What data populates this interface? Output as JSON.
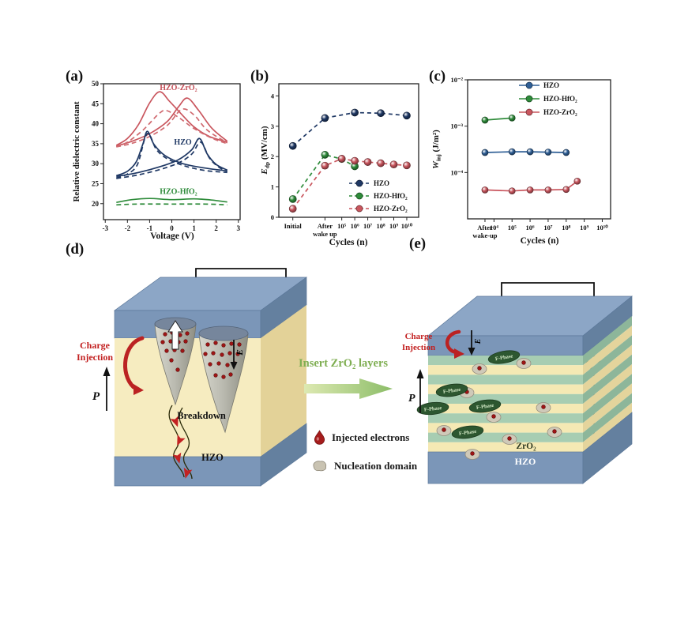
{
  "panels": {
    "a": "(a)",
    "b": "(b)",
    "c": "(c)",
    "d": "(d)",
    "e": "(e)"
  },
  "middle": {
    "insert_arrow_label": "Insert ZrO₂ layers",
    "legend": [
      {
        "icon": "electron-droplet",
        "label": "Injected electrons"
      },
      {
        "icon": "nucleation-blob",
        "label": "Nucleation domain"
      }
    ]
  },
  "diagram_d": {
    "charge_injection": [
      "Charge",
      "Injection"
    ],
    "polarization": "P",
    "field": "E",
    "breakdown": "Breakdown",
    "material": "HZO"
  },
  "diagram_e": {
    "charge_injection": [
      "Charge",
      "Injection"
    ],
    "polarization": "P",
    "field": "E",
    "phase_label": "F-Phase",
    "zro2": "ZrO₂",
    "hzo": "HZO"
  },
  "chart_data": [
    {
      "id": "a",
      "type": "line",
      "xlabel": "Voltage (V)",
      "ylabel": "Relative dielectric constant",
      "xlim": [
        -3.08,
        3.08
      ],
      "ylim": [
        16,
        50
      ],
      "xticks": [
        -3,
        -2,
        -1,
        0,
        1,
        2,
        3
      ],
      "yticks": [
        20,
        25,
        30,
        35,
        40,
        45,
        50
      ],
      "grid": false,
      "annotations": [
        {
          "text": "HZO-ZrO₂",
          "x": 0.3,
          "y": 48.4,
          "color": "#c44f58"
        },
        {
          "text": "HZO",
          "x": 0.5,
          "y": 34.8,
          "color": "#1f3864"
        },
        {
          "text": "HZO-HfO₂",
          "x": 0.3,
          "y": 22.4,
          "color": "#2e8b3a"
        }
      ],
      "series": [
        {
          "name": "HZO-ZrO2 sweep- solid",
          "color": "#c9565e",
          "dash": "none",
          "points": [
            [
              -2.5,
              34.6
            ],
            [
              -2.0,
              36.3
            ],
            [
              -1.5,
              39.8
            ],
            [
              -1.0,
              45.2
            ],
            [
              -0.55,
              48.0
            ],
            [
              -0.1,
              45.6
            ],
            [
              0.4,
              42.6
            ],
            [
              1.0,
              39.2
            ],
            [
              1.7,
              36.8
            ],
            [
              2.5,
              35.4
            ]
          ]
        },
        {
          "name": "HZO-ZrO2 sweep+ solid",
          "color": "#c9565e",
          "dash": "none",
          "points": [
            [
              -2.5,
              34.4
            ],
            [
              -1.8,
              35.6
            ],
            [
              -1.0,
              37.5
            ],
            [
              -0.2,
              40.6
            ],
            [
              0.3,
              44.2
            ],
            [
              0.7,
              46.4
            ],
            [
              1.2,
              43.4
            ],
            [
              1.8,
              38.9
            ],
            [
              2.5,
              35.6
            ]
          ]
        },
        {
          "name": "HZO-ZrO2 sweep- dashed",
          "color": "#d06a70",
          "dash": "6,4",
          "points": [
            [
              -2.5,
              34.2
            ],
            [
              -2.0,
              35.4
            ],
            [
              -1.3,
              38.4
            ],
            [
              -0.6,
              42.4
            ],
            [
              -0.25,
              43.3
            ],
            [
              0.3,
              41.6
            ],
            [
              1.0,
              38.8
            ],
            [
              1.8,
              36.4
            ],
            [
              2.5,
              35.0
            ]
          ]
        },
        {
          "name": "HZO-ZrO2 sweep+ dashed",
          "color": "#d06a70",
          "dash": "6,4",
          "points": [
            [
              -2.5,
              34.2
            ],
            [
              -1.8,
              35.1
            ],
            [
              -1.0,
              36.8
            ],
            [
              -0.2,
              39.6
            ],
            [
              0.45,
              43.6
            ],
            [
              1.0,
              42.2
            ],
            [
              1.6,
              38.4
            ],
            [
              2.5,
              35.2
            ]
          ]
        },
        {
          "name": "HZO sweep- solid",
          "color": "#1f3864",
          "dash": "none",
          "points": [
            [
              -2.5,
              27.0
            ],
            [
              -2.0,
              28.1
            ],
            [
              -1.6,
              30.5
            ],
            [
              -1.3,
              35.0
            ],
            [
              -1.1,
              38.1
            ],
            [
              -0.8,
              34.8
            ],
            [
              -0.3,
              32.0
            ],
            [
              0.5,
              30.0
            ],
            [
              1.5,
              28.9
            ],
            [
              2.5,
              28.2
            ]
          ]
        },
        {
          "name": "HZO sweep+ solid",
          "color": "#1f3864",
          "dash": "none",
          "points": [
            [
              -2.5,
              26.8
            ],
            [
              -1.5,
              27.8
            ],
            [
              -0.5,
              29.3
            ],
            [
              0.3,
              31.0
            ],
            [
              0.9,
              33.5
            ],
            [
              1.25,
              36.3
            ],
            [
              1.6,
              32.4
            ],
            [
              2.0,
              29.8
            ],
            [
              2.5,
              28.4
            ]
          ]
        },
        {
          "name": "HZO sweep- dashed",
          "color": "#1f3864",
          "dash": "6,4",
          "points": [
            [
              -2.5,
              26.4
            ],
            [
              -2.0,
              27.4
            ],
            [
              -1.55,
              29.8
            ],
            [
              -1.2,
              36.6
            ],
            [
              -1.0,
              37.2
            ],
            [
              -0.7,
              33.6
            ],
            [
              -0.2,
              31.2
            ],
            [
              0.6,
              29.4
            ],
            [
              1.5,
              28.3
            ],
            [
              2.5,
              27.8
            ]
          ]
        },
        {
          "name": "HZO sweep+ dashed",
          "color": "#1f3864",
          "dash": "6,4",
          "points": [
            [
              -2.5,
              26.3
            ],
            [
              -1.5,
              27.2
            ],
            [
              -0.5,
              28.6
            ],
            [
              0.3,
              30.2
            ],
            [
              0.9,
              32.4
            ],
            [
              1.3,
              35.4
            ],
            [
              1.7,
              31.4
            ],
            [
              2.1,
              29.2
            ],
            [
              2.5,
              28.0
            ]
          ]
        },
        {
          "name": "HZO-HfO2 solid",
          "color": "#2e8b3a",
          "dash": "none",
          "points": [
            [
              -2.5,
              20.3
            ],
            [
              -1.8,
              21.0
            ],
            [
              -1.0,
              21.3
            ],
            [
              0.0,
              21.0
            ],
            [
              1.0,
              21.2
            ],
            [
              1.8,
              20.9
            ],
            [
              2.5,
              20.4
            ]
          ]
        },
        {
          "name": "HZO-HfO2 dashed",
          "color": "#2e8b3a",
          "dash": "6,4",
          "points": [
            [
              -2.5,
              19.7
            ],
            [
              -1.5,
              19.9
            ],
            [
              0.0,
              19.9
            ],
            [
              1.5,
              19.9
            ],
            [
              2.5,
              19.7
            ]
          ]
        }
      ]
    },
    {
      "id": "b",
      "type": "scatter-line",
      "xlabel": "Cycles (n)",
      "ylabel": {
        "sym": "E",
        "sub": "dp",
        "unit": " (MV/cm)"
      },
      "xlim": [
        0,
        10
      ],
      "ylim": [
        0,
        4.4
      ],
      "yticks": [
        0,
        1,
        2,
        3,
        4
      ],
      "xticks": [
        {
          "u": 1.0,
          "label": "Initial"
        },
        {
          "u": 3.3,
          "lines": [
            "After",
            "wake up"
          ]
        },
        {
          "u": 4.5,
          "label": "10⁵"
        },
        {
          "u": 5.43,
          "label": "10⁶"
        },
        {
          "u": 6.36,
          "label": "10⁷"
        },
        {
          "u": 7.29,
          "label": "10⁸"
        },
        {
          "u": 8.22,
          "label": "10⁹"
        },
        {
          "u": 9.15,
          "label": "10¹⁰"
        }
      ],
      "show_legend": true,
      "series": [
        {
          "name": "HZO",
          "color": "#1f3864",
          "dash": "5,4",
          "points": [
            [
              1.0,
              2.35
            ],
            [
              3.3,
              3.27
            ],
            [
              5.43,
              3.45
            ],
            [
              7.29,
              3.43
            ],
            [
              9.15,
              3.35
            ]
          ]
        },
        {
          "name": "HZO-HfO₂",
          "color": "#2e8b3a",
          "dash": "5,4",
          "points": [
            [
              1.0,
              0.6
            ],
            [
              3.3,
              2.06
            ],
            [
              4.5,
              1.92
            ],
            [
              5.43,
              1.68
            ]
          ]
        },
        {
          "name": "HZO-ZrO₂",
          "color": "#c9565e",
          "dash": "5,4",
          "points": [
            [
              1.0,
              0.28
            ],
            [
              3.3,
              1.7
            ],
            [
              4.5,
              1.93
            ],
            [
              5.43,
              1.86
            ],
            [
              6.36,
              1.82
            ],
            [
              7.29,
              1.78
            ],
            [
              8.22,
              1.74
            ],
            [
              9.15,
              1.71
            ]
          ]
        }
      ]
    },
    {
      "id": "c",
      "type": "scatter-line",
      "xlabel": "Cycles (n)",
      "ylabel": {
        "sym": "W",
        "sub": "inj",
        "unit": " (J/m²)"
      },
      "xlim": [
        0,
        10.3
      ],
      "ylog": true,
      "ylim": [
        1e-05,
        0.01
      ],
      "yticks": [
        {
          "v": 0.01,
          "label": "10⁻²"
        },
        {
          "v": 0.001,
          "label": "10⁻³"
        },
        {
          "v": 0.0001,
          "label": "10⁻⁴"
        }
      ],
      "xticks": [
        {
          "u": 1.25,
          "lines": [
            "After",
            "wake-up"
          ]
        },
        {
          "u": 1.9,
          "label": "10⁴"
        },
        {
          "u": 3.2,
          "label": "10⁵"
        },
        {
          "u": 4.5,
          "label": "10⁶"
        },
        {
          "u": 5.8,
          "label": "10⁷"
        },
        {
          "u": 7.1,
          "label": "10⁸"
        },
        {
          "u": 8.4,
          "label": "10⁹"
        },
        {
          "u": 9.7,
          "label": "10¹⁰"
        }
      ],
      "show_legend": true,
      "series": [
        {
          "name": "HZO",
          "color": "#2f5f96",
          "dash": "none",
          "points": [
            [
              1.25,
              0.00027
            ],
            [
              3.2,
              0.00028
            ],
            [
              4.5,
              0.00028
            ],
            [
              5.8,
              0.000275
            ],
            [
              7.1,
              0.00027
            ]
          ]
        },
        {
          "name": "HZO-HfO₂",
          "color": "#2e8b3a",
          "dash": "none",
          "points": [
            [
              1.25,
              0.00135
            ],
            [
              3.2,
              0.0015
            ]
          ]
        },
        {
          "name": "HZO-ZrO₂",
          "color": "#c9565e",
          "dash": "none",
          "points": [
            [
              1.25,
              4.2e-05
            ],
            [
              3.2,
              4e-05
            ],
            [
              4.5,
              4.2e-05
            ],
            [
              5.8,
              4.2e-05
            ],
            [
              7.1,
              4.3e-05
            ],
            [
              7.9,
              6.5e-05
            ]
          ]
        }
      ]
    }
  ]
}
